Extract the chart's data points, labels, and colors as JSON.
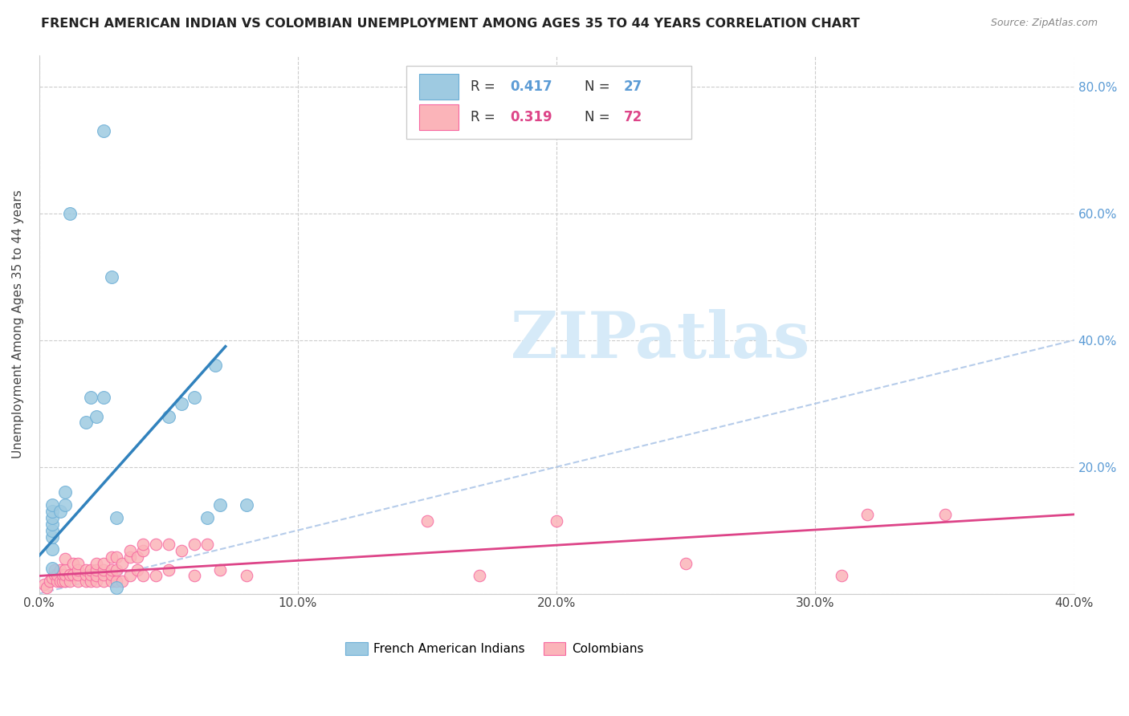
{
  "title": "FRENCH AMERICAN INDIAN VS COLOMBIAN UNEMPLOYMENT AMONG AGES 35 TO 44 YEARS CORRELATION CHART",
  "source": "Source: ZipAtlas.com",
  "ylabel": "Unemployment Among Ages 35 to 44 years",
  "xlim": [
    0.0,
    0.4
  ],
  "ylim": [
    0.0,
    0.85
  ],
  "legend_labels": [
    "French American Indians",
    "Colombians"
  ],
  "blue_R": "0.417",
  "blue_N": "27",
  "pink_R": "0.319",
  "pink_N": "72",
  "blue_color": "#9ecae1",
  "pink_color": "#fbb4b9",
  "blue_edge": "#6baed6",
  "pink_edge": "#f768a1",
  "blue_line_color": "#3182bd",
  "pink_line_color": "#dd4488",
  "diag_color": "#aec7e8",
  "watermark_color": "#d6eaf8",
  "grid_color": "#cccccc",
  "text_color": "#444444",
  "right_tick_color": "#5b9bd5",
  "blue_scatter": [
    [
      0.005,
      0.04
    ],
    [
      0.005,
      0.07
    ],
    [
      0.005,
      0.09
    ],
    [
      0.005,
      0.1
    ],
    [
      0.005,
      0.11
    ],
    [
      0.005,
      0.12
    ],
    [
      0.005,
      0.13
    ],
    [
      0.005,
      0.14
    ],
    [
      0.008,
      0.13
    ],
    [
      0.01,
      0.14
    ],
    [
      0.01,
      0.16
    ],
    [
      0.012,
      0.6
    ],
    [
      0.018,
      0.27
    ],
    [
      0.02,
      0.31
    ],
    [
      0.022,
      0.28
    ],
    [
      0.025,
      0.31
    ],
    [
      0.025,
      0.73
    ],
    [
      0.028,
      0.5
    ],
    [
      0.03,
      0.12
    ],
    [
      0.03,
      0.01
    ],
    [
      0.05,
      0.28
    ],
    [
      0.055,
      0.3
    ],
    [
      0.06,
      0.31
    ],
    [
      0.065,
      0.12
    ],
    [
      0.068,
      0.36
    ],
    [
      0.07,
      0.14
    ],
    [
      0.08,
      0.14
    ]
  ],
  "pink_scatter": [
    [
      0.002,
      0.015
    ],
    [
      0.003,
      0.01
    ],
    [
      0.004,
      0.02
    ],
    [
      0.005,
      0.025
    ],
    [
      0.006,
      0.03
    ],
    [
      0.006,
      0.038
    ],
    [
      0.007,
      0.02
    ],
    [
      0.007,
      0.03
    ],
    [
      0.008,
      0.02
    ],
    [
      0.008,
      0.038
    ],
    [
      0.009,
      0.02
    ],
    [
      0.009,
      0.03
    ],
    [
      0.01,
      0.02
    ],
    [
      0.01,
      0.03
    ],
    [
      0.01,
      0.038
    ],
    [
      0.01,
      0.055
    ],
    [
      0.012,
      0.02
    ],
    [
      0.012,
      0.03
    ],
    [
      0.013,
      0.03
    ],
    [
      0.013,
      0.048
    ],
    [
      0.015,
      0.02
    ],
    [
      0.015,
      0.03
    ],
    [
      0.015,
      0.038
    ],
    [
      0.015,
      0.048
    ],
    [
      0.018,
      0.02
    ],
    [
      0.018,
      0.03
    ],
    [
      0.018,
      0.038
    ],
    [
      0.02,
      0.02
    ],
    [
      0.02,
      0.03
    ],
    [
      0.02,
      0.038
    ],
    [
      0.022,
      0.02
    ],
    [
      0.022,
      0.028
    ],
    [
      0.022,
      0.038
    ],
    [
      0.022,
      0.048
    ],
    [
      0.025,
      0.02
    ],
    [
      0.025,
      0.03
    ],
    [
      0.025,
      0.038
    ],
    [
      0.025,
      0.048
    ],
    [
      0.028,
      0.02
    ],
    [
      0.028,
      0.03
    ],
    [
      0.028,
      0.038
    ],
    [
      0.028,
      0.058
    ],
    [
      0.03,
      0.02
    ],
    [
      0.03,
      0.038
    ],
    [
      0.03,
      0.058
    ],
    [
      0.032,
      0.02
    ],
    [
      0.032,
      0.048
    ],
    [
      0.035,
      0.028
    ],
    [
      0.035,
      0.058
    ],
    [
      0.035,
      0.068
    ],
    [
      0.038,
      0.038
    ],
    [
      0.038,
      0.058
    ],
    [
      0.04,
      0.028
    ],
    [
      0.04,
      0.068
    ],
    [
      0.04,
      0.078
    ],
    [
      0.045,
      0.078
    ],
    [
      0.045,
      0.028
    ],
    [
      0.05,
      0.038
    ],
    [
      0.05,
      0.078
    ],
    [
      0.055,
      0.068
    ],
    [
      0.06,
      0.028
    ],
    [
      0.06,
      0.078
    ],
    [
      0.065,
      0.078
    ],
    [
      0.07,
      0.038
    ],
    [
      0.08,
      0.028
    ],
    [
      0.15,
      0.115
    ],
    [
      0.17,
      0.028
    ],
    [
      0.2,
      0.115
    ],
    [
      0.25,
      0.048
    ],
    [
      0.31,
      0.028
    ],
    [
      0.32,
      0.125
    ],
    [
      0.35,
      0.125
    ]
  ],
  "blue_line_x": [
    0.0,
    0.072
  ],
  "blue_line_y": [
    0.06,
    0.39
  ],
  "pink_line_x": [
    0.0,
    0.4
  ],
  "pink_line_y": [
    0.028,
    0.125
  ],
  "x_ticks": [
    0.0,
    0.1,
    0.2,
    0.3,
    0.4
  ],
  "x_tick_labels": [
    "0.0%",
    "10.0%",
    "20.0%",
    "30.0%",
    "40.0%"
  ],
  "y_ticks": [
    0.0,
    0.2,
    0.4,
    0.6,
    0.8
  ],
  "y_tick_labels_left": [
    "",
    "20.0%",
    "40.0%",
    "60.0%",
    "80.0%"
  ],
  "y_tick_labels_right": [
    "",
    "20.0%",
    "40.0%",
    "60.0%",
    "80.0%"
  ]
}
